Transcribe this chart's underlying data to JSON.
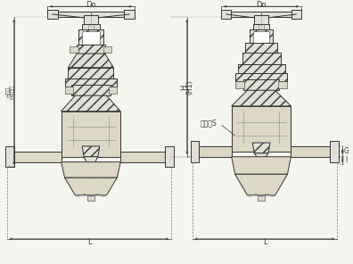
{
  "bg_color": "#f5f5f0",
  "line_color": "#333333",
  "labels": {
    "Do": "Do",
    "H": "H",
    "H1": "(H1)",
    "H_left": "H大闭",
    "H1_left": "H1全开",
    "L": "L",
    "G": "G",
    "I": "I",
    "S": "扬手处S"
  }
}
